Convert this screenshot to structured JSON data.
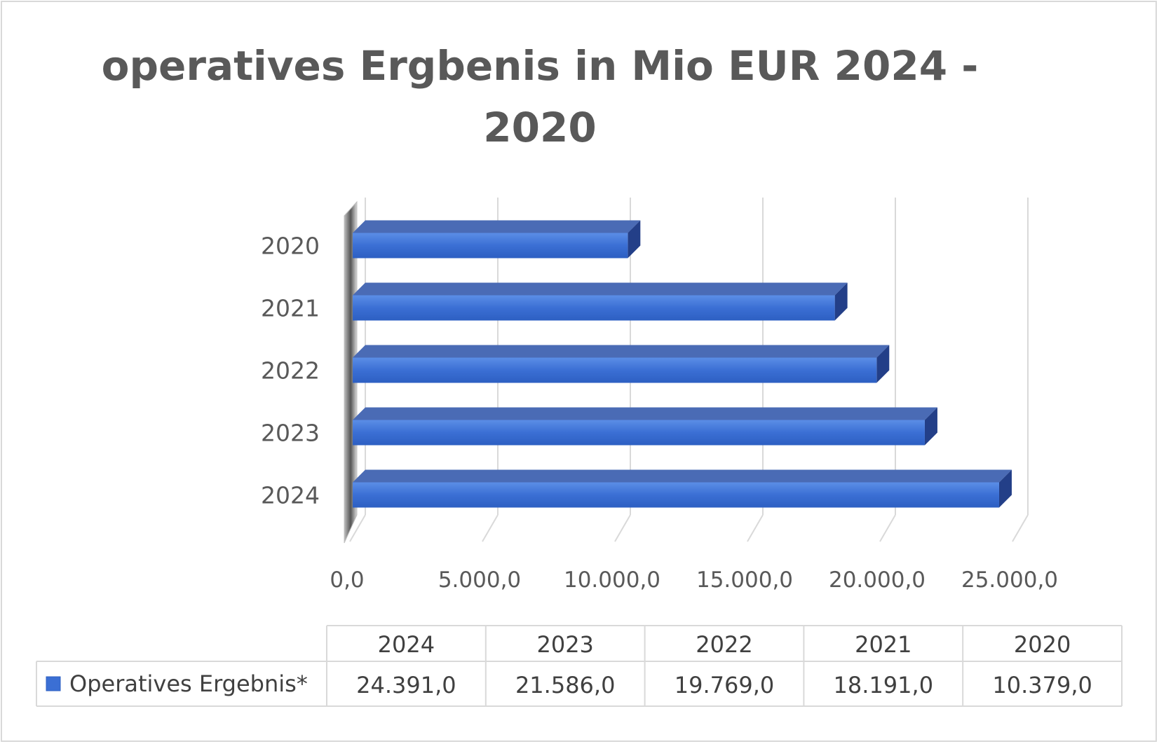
{
  "chart_data": {
    "type": "bar",
    "orientation": "horizontal",
    "title": "operatives Ergbenis in Mio EUR 2024 - 2020",
    "categories": [
      "2024",
      "2023",
      "2022",
      "2021",
      "2020"
    ],
    "series": [
      {
        "name": "Operatives Ergebnis*",
        "values": [
          24391.0,
          21586.0,
          19769.0,
          18191.0,
          10379.0
        ],
        "value_labels": [
          "24.391,0",
          "21.586,0",
          "19.769,0",
          "18.191,0",
          "10.379,0"
        ],
        "color": "#3b6fd4"
      }
    ],
    "xlim": [
      0,
      25000
    ],
    "xticks": [
      0,
      5000,
      10000,
      15000,
      20000,
      25000
    ],
    "xtick_labels": [
      "0,0",
      "5.000,0",
      "10.000,0",
      "15.000,0",
      "20.000,0",
      "25.000,0"
    ],
    "grid": true,
    "style": "3d",
    "data_table": true
  }
}
